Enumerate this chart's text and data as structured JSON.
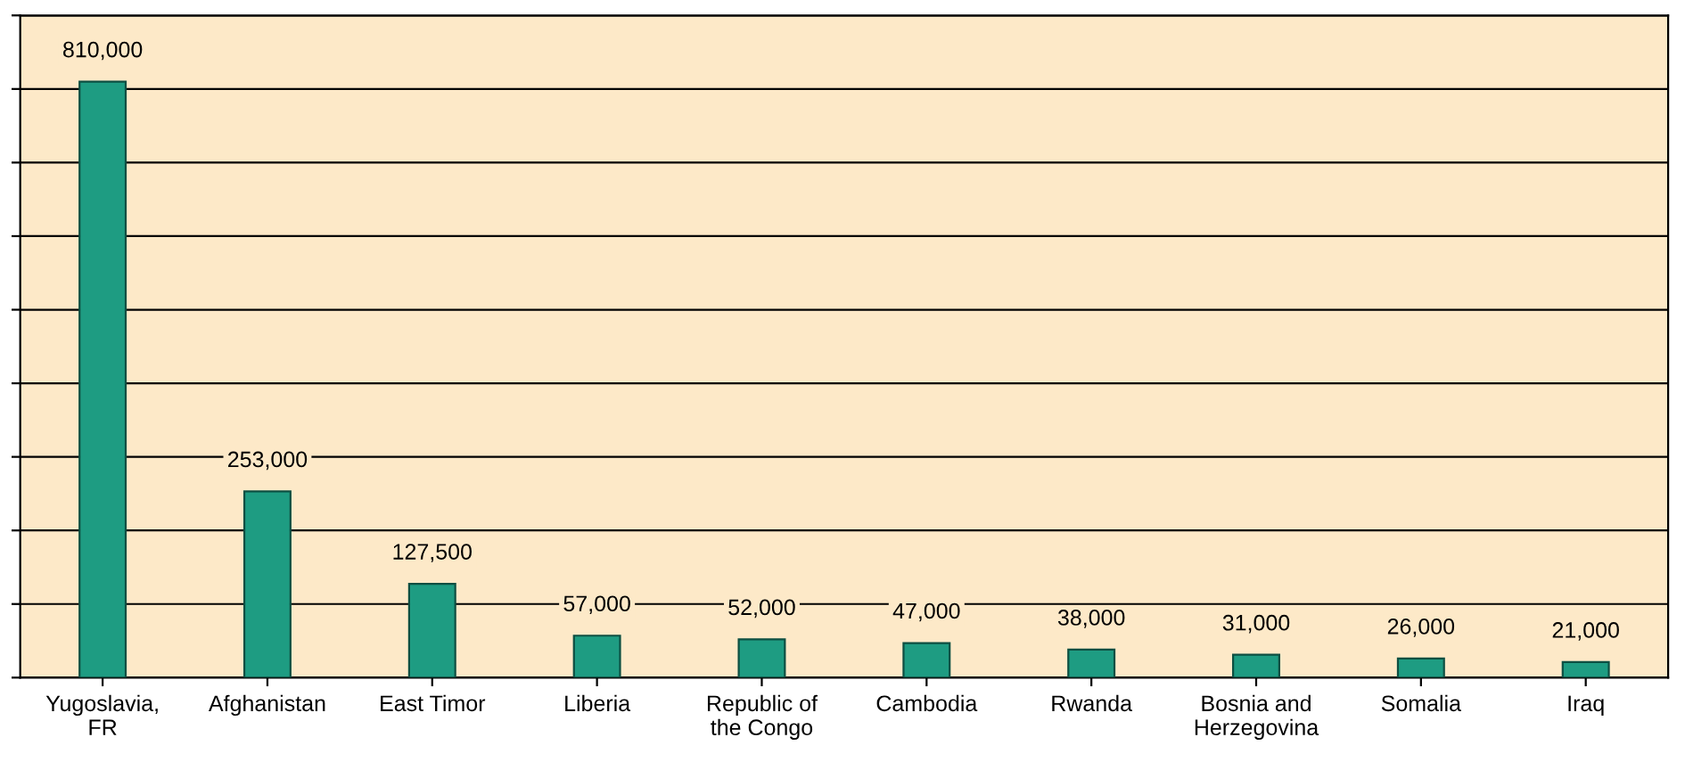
{
  "chart_data": {
    "type": "bar",
    "categories": [
      "Yugoslavia,\nFR",
      "Afghanistan",
      "East Timor",
      "Liberia",
      "Republic of\nthe Congo",
      "Cambodia",
      "Rwanda",
      "Bosnia and\nHerzegovina",
      "Somalia",
      "Iraq"
    ],
    "values": [
      810000,
      253000,
      127500,
      57000,
      52000,
      47000,
      38000,
      31000,
      26000,
      21000
    ],
    "color": "#1e9c82",
    "value_labels": [
      "810,000",
      "253,000",
      "127,500",
      "57,000",
      "52,000",
      "47,000",
      "38,000",
      "31,000",
      "26,000",
      "21,000"
    ],
    "ylim": [
      0,
      900000
    ],
    "yticks": [
      {
        "value": 0,
        "label": null
      },
      {
        "value": 100000,
        "label": null
      },
      {
        "value": 200000,
        "label": null
      },
      {
        "value": 300000,
        "label": null
      },
      {
        "value": 400000,
        "label": null
      },
      {
        "value": 500000,
        "label": null
      },
      {
        "value": 600000,
        "label": null
      },
      {
        "value": 700000,
        "label": null
      },
      {
        "value": 800000,
        "label": null
      },
      {
        "value": 900000,
        "label": null
      }
    ],
    "grid": "y"
  }
}
